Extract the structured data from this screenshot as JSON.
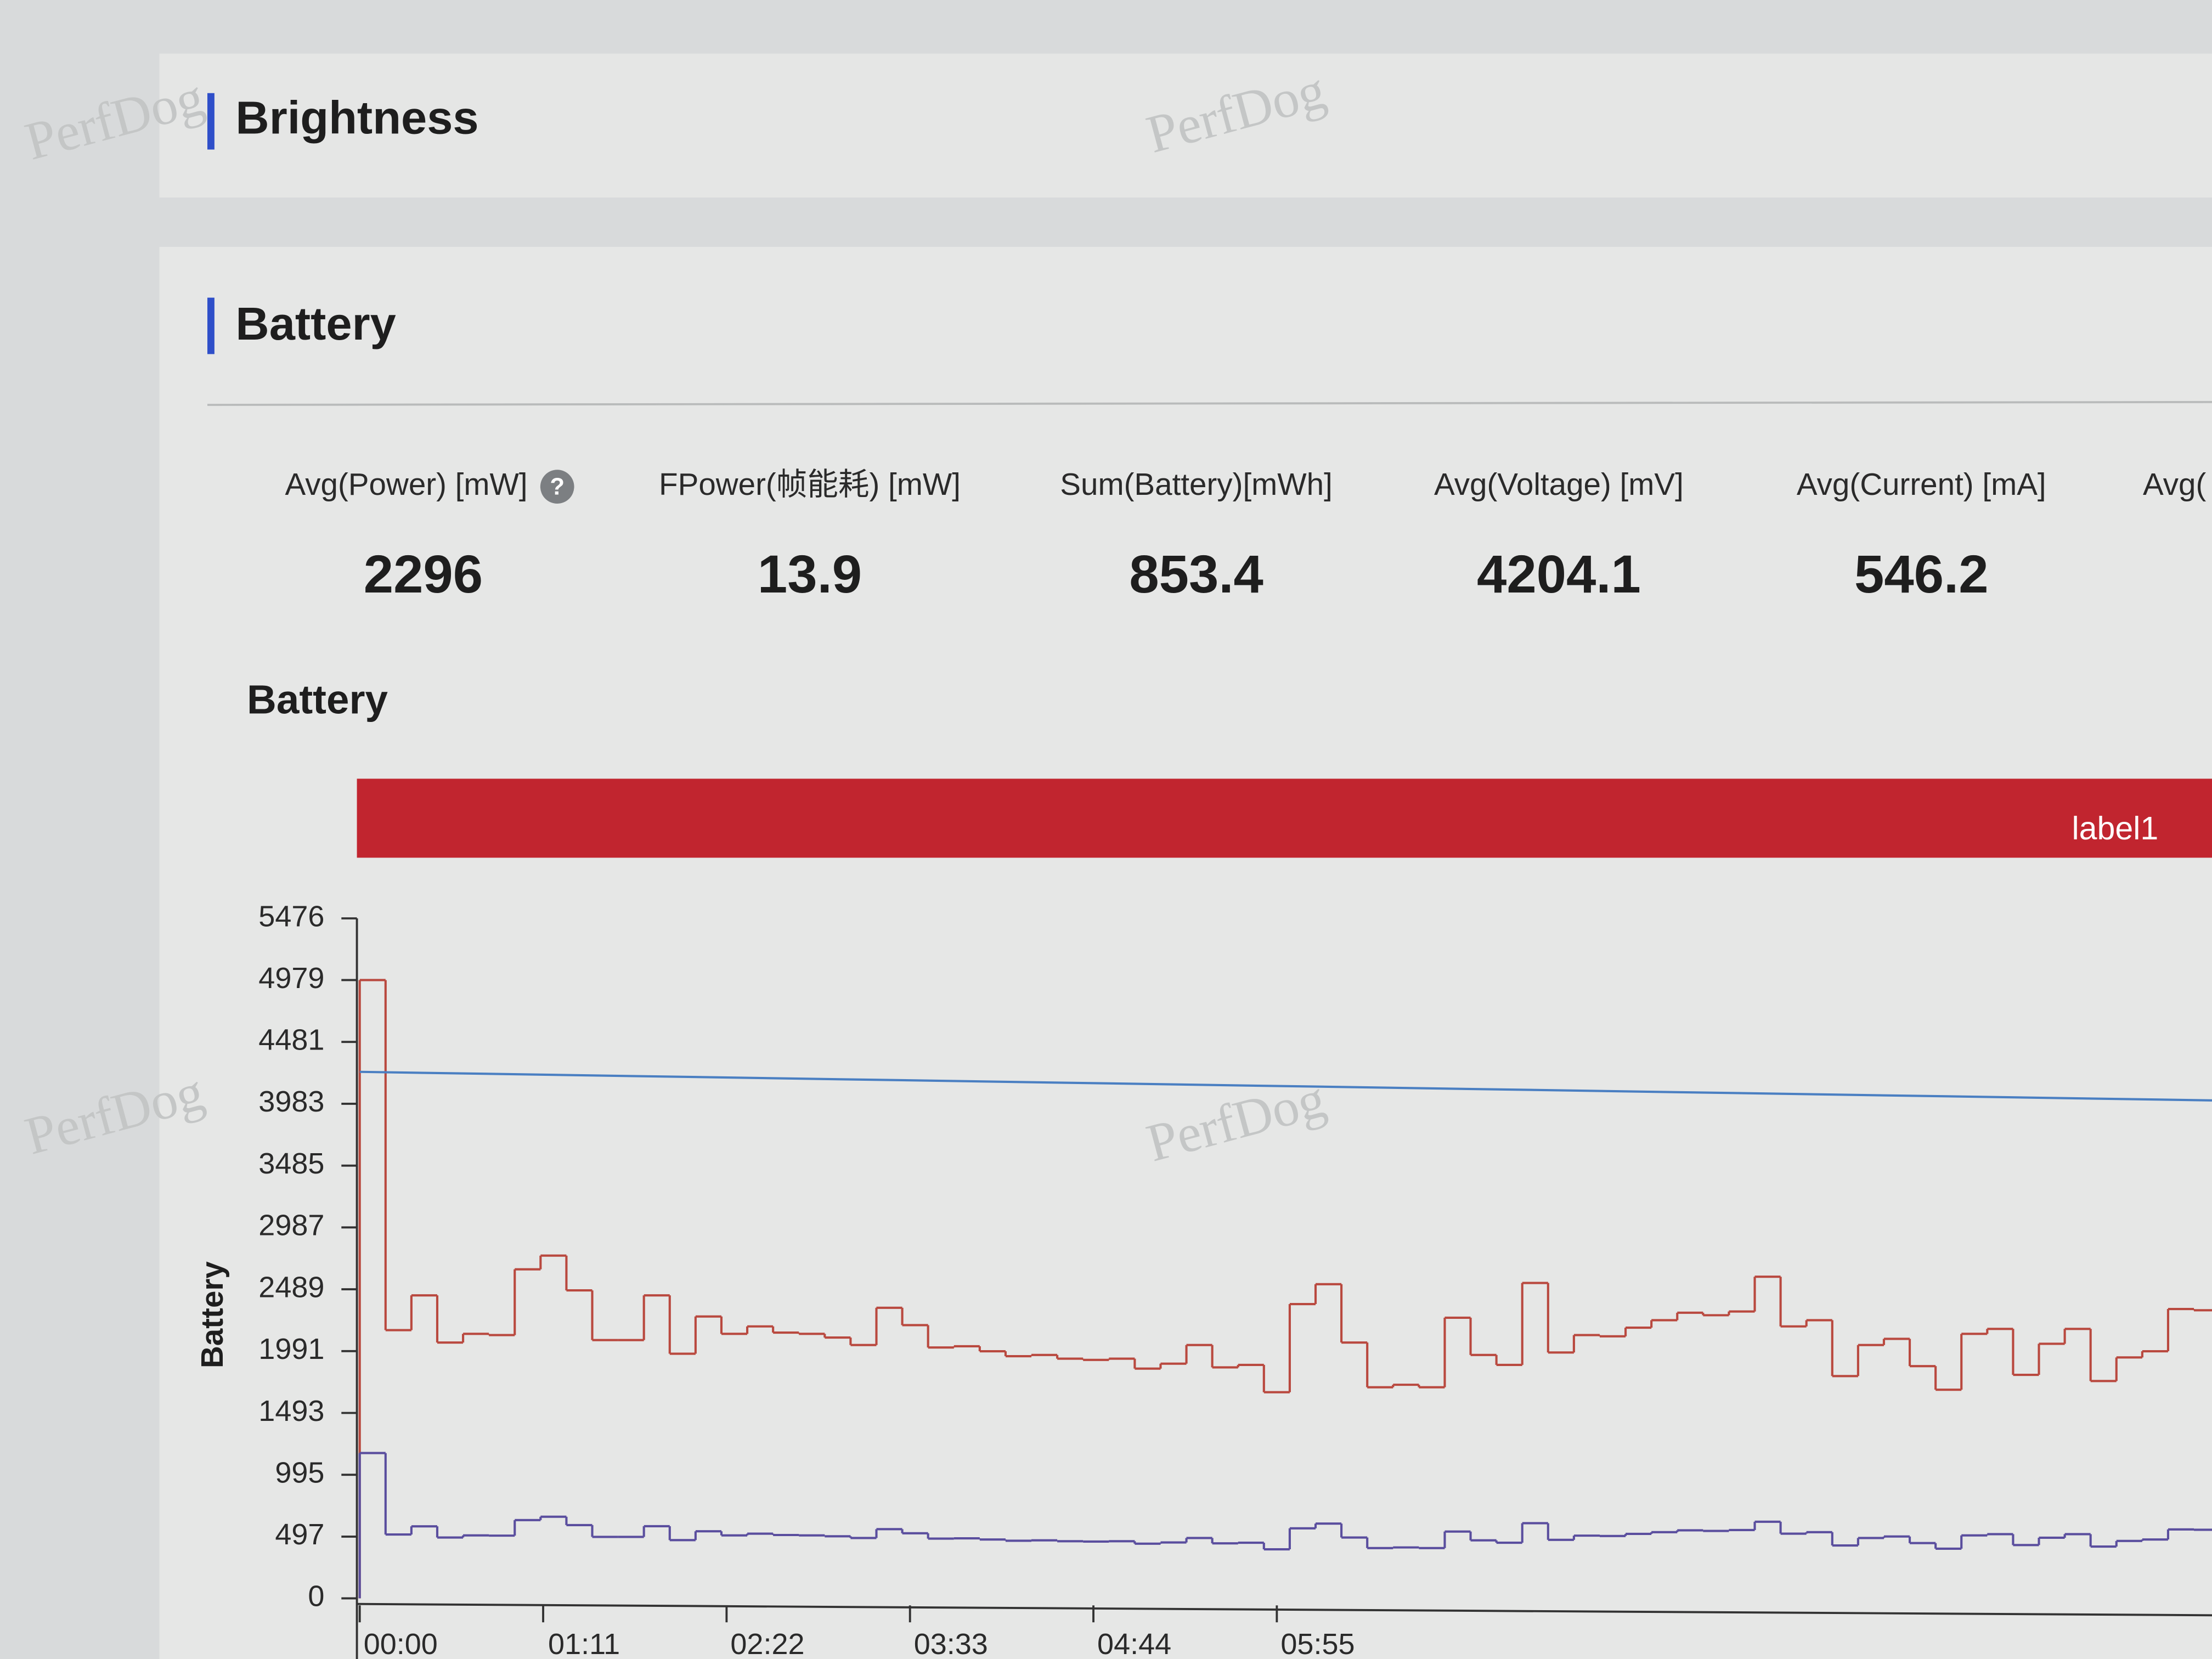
{
  "watermark": "PerfDog",
  "sections": [
    {
      "title": "Brightness"
    },
    {
      "title": "Battery"
    }
  ],
  "metrics": [
    {
      "label": "Avg(Power) [mW]",
      "value": 2296
    },
    {
      "label": "FPower(帧能耗) [mW]",
      "value": 13.9
    },
    {
      "label": "Sum(Battery)[mWh]",
      "value": 853.4
    },
    {
      "label": "Avg(Voltage) [mV]",
      "value": 4204.1
    },
    {
      "label": "Avg(Current) [mA]",
      "value": 546.2
    },
    {
      "label": "Avg("
    }
  ],
  "chart_data": {
    "type": "line",
    "step": true,
    "title": "Battery",
    "band_label": "label1",
    "band_color": "#c1252f",
    "ylabel": "Battery",
    "xlim": [
      0,
      717
    ],
    "ylim": [
      0,
      5476
    ],
    "yticks": [
      0,
      497,
      995,
      1493,
      1991,
      2489,
      2987,
      3485,
      3983,
      4481,
      4979,
      5476
    ],
    "xticks": [
      {
        "value": 0,
        "label": "00:00"
      },
      {
        "value": 71,
        "label": "01:11"
      },
      {
        "value": 142,
        "label": "02:22"
      },
      {
        "value": 213,
        "label": "03:33"
      },
      {
        "value": 284,
        "label": "04:44"
      },
      {
        "value": 355,
        "label": "05:55"
      }
    ],
    "x": [
      0,
      10,
      20,
      30,
      40,
      50,
      60,
      70,
      80,
      90,
      100,
      110,
      120,
      130,
      140,
      150,
      160,
      170,
      180,
      190,
      200,
      210,
      220,
      230,
      240,
      250,
      260,
      270,
      280,
      290,
      300,
      310,
      320,
      330,
      340,
      350,
      360,
      370,
      380,
      390,
      400,
      410,
      420,
      430,
      440,
      450,
      460,
      470,
      480,
      490,
      500,
      510,
      520,
      530,
      540,
      550,
      560,
      570,
      580,
      590,
      600,
      610,
      620,
      630,
      640,
      650,
      660,
      670,
      680,
      690,
      700,
      710
    ],
    "series": [
      {
        "color": "#b9493f",
        "values": [
          4979,
          2160,
          2440,
          2060,
          2130,
          2120,
          2650,
          2760,
          2480,
          2080,
          2080,
          2440,
          1970,
          2270,
          2130,
          2190,
          2140,
          2130,
          2100,
          2040,
          2340,
          2200,
          2020,
          2030,
          1990,
          1950,
          1960,
          1930,
          1920,
          1930,
          1850,
          1890,
          2040,
          1860,
          1880,
          1660,
          2370,
          2530,
          2060,
          1700,
          1720,
          1700,
          2260,
          1960,
          1880,
          2540,
          1980,
          2120,
          2110,
          2180,
          2240,
          2300,
          2280,
          2310,
          2590,
          2190,
          2240,
          1790,
          2040,
          2090,
          1870,
          1680,
          2130,
          2170,
          1800,
          2050,
          2170,
          1750,
          1940,
          1990,
          2330,
          2320
        ]
      },
      {
        "color": "#5a4e9e",
        "values": [
          1170,
          514,
          580,
          490,
          507,
          505,
          630,
          657,
          590,
          495,
          495,
          581,
          469,
          540,
          507,
          521,
          510,
          507,
          500,
          486,
          557,
          524,
          481,
          483,
          474,
          464,
          467,
          460,
          457,
          460,
          440,
          450,
          486,
          443,
          448,
          395,
          564,
          602,
          490,
          405,
          410,
          405,
          538,
          467,
          448,
          605,
          471,
          505,
          502,
          519,
          533,
          548,
          543,
          550,
          617,
          521,
          533,
          426,
          486,
          498,
          445,
          400,
          507,
          517,
          429,
          488,
          517,
          417,
          462,
          474,
          555,
          552
        ]
      },
      {
        "color": "#4a7fc2",
        "step": false,
        "x": [
          0,
          717
        ],
        "values": [
          4240,
          4010
        ]
      }
    ]
  }
}
